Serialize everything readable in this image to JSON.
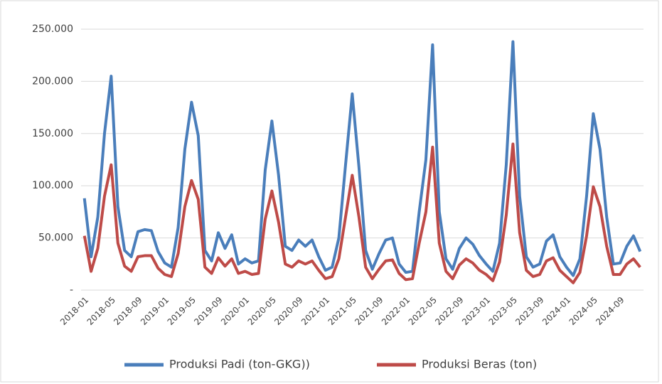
{
  "chart_data": {
    "type": "line",
    "categories": [
      "2018-01",
      null,
      null,
      null,
      "2018-05",
      null,
      null,
      null,
      "2018-09",
      null,
      null,
      null,
      "2019-01",
      null,
      null,
      null,
      "2019-05",
      null,
      null,
      null,
      "2019-09",
      null,
      null,
      null,
      "2020-01",
      null,
      null,
      null,
      "2020-05",
      null,
      null,
      null,
      "2020-09",
      null,
      null,
      null,
      "2021-01",
      null,
      null,
      null,
      "2021-05",
      null,
      null,
      null,
      "2021-09",
      null,
      null,
      null,
      "2022-01",
      null,
      null,
      null,
      "2022-05",
      null,
      null,
      null,
      "2022-09",
      null,
      null,
      null,
      "2023-01",
      null,
      null,
      null,
      "2023-05",
      null,
      null,
      null,
      "2023-09",
      null,
      null,
      null,
      "2024-01",
      null,
      null,
      null,
      "2024-05",
      null,
      null,
      null,
      "2024-09",
      null,
      null,
      null
    ],
    "series": [
      {
        "name": "Produksi Padi (ton-GKG))",
        "color": "#4a7ebb",
        "values": [
          88000,
          32000,
          70000,
          150000,
          205000,
          80000,
          38000,
          32000,
          56000,
          58000,
          57000,
          37000,
          26000,
          22000,
          60000,
          135000,
          180000,
          148000,
          38000,
          28000,
          55000,
          40000,
          53000,
          25000,
          30000,
          26000,
          28000,
          115000,
          162000,
          110000,
          42000,
          38000,
          48000,
          42000,
          48000,
          32000,
          19000,
          22000,
          50000,
          120000,
          188000,
          118000,
          38000,
          20000,
          35000,
          48000,
          50000,
          25000,
          17000,
          18000,
          75000,
          125000,
          235000,
          75000,
          30000,
          20000,
          40000,
          50000,
          44000,
          33000,
          25000,
          18000,
          45000,
          120000,
          238000,
          90000,
          32000,
          22000,
          25000,
          47000,
          53000,
          32000,
          22000,
          14000,
          30000,
          90000,
          169000,
          135000,
          70000,
          25000,
          26000,
          42000,
          52000,
          37000
        ]
      },
      {
        "name": "Produksi Beras (ton)",
        "color": "#be4b48",
        "values": [
          52000,
          18000,
          40000,
          90000,
          120000,
          45000,
          23000,
          18000,
          32000,
          33000,
          33000,
          21000,
          15000,
          13000,
          35000,
          80000,
          105000,
          87000,
          22000,
          16000,
          31000,
          23000,
          30000,
          16000,
          18000,
          15000,
          16000,
          68000,
          95000,
          65000,
          25000,
          22000,
          28000,
          25000,
          28000,
          19000,
          11000,
          13000,
          30000,
          70000,
          110000,
          70000,
          22000,
          11000,
          20000,
          28000,
          29000,
          16000,
          10000,
          11000,
          45000,
          75000,
          137000,
          45000,
          18000,
          11000,
          24000,
          30000,
          26000,
          19000,
          15000,
          9000,
          27000,
          72000,
          140000,
          55000,
          19000,
          13000,
          15000,
          28000,
          31000,
          19000,
          13000,
          7000,
          17000,
          52000,
          99000,
          80000,
          42000,
          15000,
          15000,
          25000,
          30000,
          22000
        ]
      }
    ],
    "ylim": [
      0,
      250000
    ],
    "yticks": [
      {
        "value": 0,
        "label": "-"
      },
      {
        "value": 50000,
        "label": "50.000"
      },
      {
        "value": 100000,
        "label": "100.000"
      },
      {
        "value": 150000,
        "label": "150.000"
      },
      {
        "value": 200000,
        "label": "200.000"
      },
      {
        "value": 250000,
        "label": "250.000"
      }
    ],
    "grid": true,
    "legend": "bottom"
  }
}
